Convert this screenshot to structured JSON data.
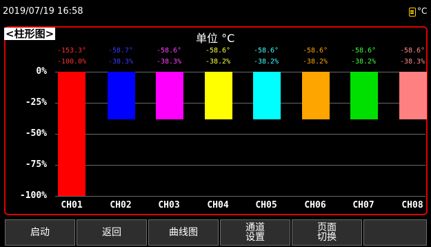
{
  "status": {
    "datetime": "2019/07/19 16:58",
    "unit": "°C",
    "storage_icon": "sd-card-icon"
  },
  "panel": {
    "mode_label": "<柱形图>",
    "unit_title": "单位 °C"
  },
  "chart_data": {
    "type": "bar",
    "categories": [
      "CH01",
      "CH02",
      "CH03",
      "CH04",
      "CH05",
      "CH06",
      "CH07",
      "CH08"
    ],
    "values": [
      -100.0,
      -38.3,
      -38.3,
      -38.2,
      -38.2,
      -38.2,
      -38.2,
      -38.3
    ],
    "temp_labels": [
      "-153.3°",
      "-58.7°",
      "-58.6°",
      "-58.6°",
      "-58.6°",
      "-58.6°",
      "-58.6°",
      "-58.6°"
    ],
    "pct_labels": [
      "-100.0%",
      "-38.3%",
      "-38.3%",
      "-38.2%",
      "-38.2%",
      "-38.2%",
      "-38.2%",
      "-38.3%"
    ],
    "colors": [
      "#ff0000",
      "#0000ff",
      "#ff00ff",
      "#ffff00",
      "#00ffff",
      "#ffa500",
      "#00e000",
      "#ff8080"
    ],
    "label_colors": [
      "#ff3030",
      "#3a3aff",
      "#ff40ff",
      "#ffff40",
      "#40ffff",
      "#ffa500",
      "#40ff40",
      "#ff8a8a"
    ],
    "yticks": [
      "0%",
      "-25%",
      "-50%",
      "-75%",
      "-100%"
    ],
    "ytick_values": [
      0,
      -25,
      -50,
      -75,
      -100
    ],
    "ylim": [
      -100,
      0
    ],
    "grid": true
  },
  "buttons": {
    "start": "启动",
    "back": "返回",
    "curve": "曲线图",
    "channel_setup": [
      "通道",
      "设置"
    ],
    "page_switch": [
      "页面",
      "切换"
    ],
    "empty": ""
  }
}
